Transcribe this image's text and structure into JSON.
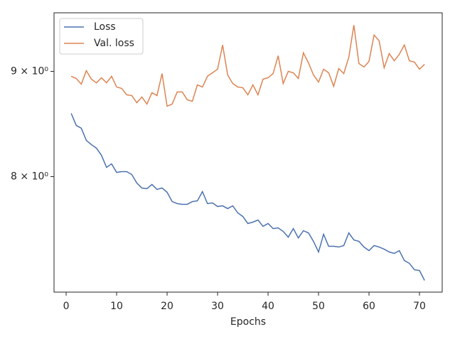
{
  "chart_data": {
    "type": "line",
    "x_label": "Epochs",
    "x": [
      1,
      2,
      3,
      4,
      5,
      6,
      7,
      8,
      9,
      10,
      11,
      12,
      13,
      14,
      15,
      16,
      17,
      18,
      19,
      20,
      21,
      22,
      23,
      24,
      25,
      26,
      27,
      28,
      29,
      30,
      31,
      32,
      33,
      34,
      35,
      36,
      37,
      38,
      39,
      40,
      41,
      42,
      43,
      44,
      45,
      46,
      47,
      48,
      49,
      50,
      51,
      52,
      53,
      54,
      55,
      56,
      57,
      58,
      59,
      60,
      61,
      62,
      63,
      64,
      65,
      66,
      67,
      68,
      69,
      70,
      71
    ],
    "series": [
      {
        "name": "Loss",
        "color": "#4c72b0",
        "values": [
          8.587,
          8.472,
          8.445,
          8.331,
          8.292,
          8.259,
          8.193,
          8.083,
          8.115,
          8.038,
          8.045,
          8.045,
          8.019,
          7.943,
          7.899,
          7.893,
          7.93,
          7.886,
          7.899,
          7.861,
          7.78,
          7.762,
          7.756,
          7.756,
          7.78,
          7.786,
          7.867,
          7.762,
          7.768,
          7.737,
          7.743,
          7.719,
          7.743,
          7.682,
          7.651,
          7.591,
          7.603,
          7.621,
          7.567,
          7.591,
          7.548,
          7.554,
          7.524,
          7.476,
          7.548,
          7.47,
          7.53,
          7.512,
          7.441,
          7.353,
          7.5,
          7.4,
          7.4,
          7.394,
          7.406,
          7.512,
          7.453,
          7.441,
          7.394,
          7.364,
          7.406,
          7.394,
          7.376,
          7.353,
          7.341,
          7.364,
          7.283,
          7.26,
          7.208,
          7.202,
          7.123
        ]
      },
      {
        "name": "Val. loss",
        "color": "#dd8452",
        "values": [
          8.951,
          8.929,
          8.872,
          9.007,
          8.922,
          8.886,
          8.936,
          8.886,
          8.951,
          8.844,
          8.83,
          8.767,
          8.76,
          8.69,
          8.746,
          8.677,
          8.788,
          8.76,
          8.978,
          8.656,
          8.677,
          8.795,
          8.795,
          8.718,
          8.704,
          8.865,
          8.844,
          8.951,
          8.986,
          9.022,
          9.27,
          8.964,
          8.879,
          8.844,
          8.837,
          8.767,
          8.865,
          8.767,
          8.922,
          8.936,
          8.978,
          9.159,
          8.879,
          9.0,
          8.986,
          8.929,
          9.189,
          9.087,
          8.964,
          8.893,
          9.022,
          8.986,
          8.851,
          9.029,
          8.978,
          9.144,
          9.478,
          9.08,
          9.044,
          9.101,
          9.374,
          9.314,
          9.036,
          9.181,
          9.108,
          9.174,
          9.27,
          9.108,
          9.094,
          9.022,
          9.072
        ]
      }
    ],
    "xlim": [
      -2.4,
      74.5
    ],
    "xticks": [
      0,
      10,
      20,
      30,
      40,
      50,
      60,
      70
    ],
    "ylim": [
      7.03,
      9.61
    ],
    "yticks": [
      {
        "value": 8,
        "label": "8 × 10⁰"
      },
      {
        "value": 9,
        "label": "9 × 10⁰"
      }
    ],
    "y_log": true,
    "grid": false,
    "legend": "upper left"
  }
}
